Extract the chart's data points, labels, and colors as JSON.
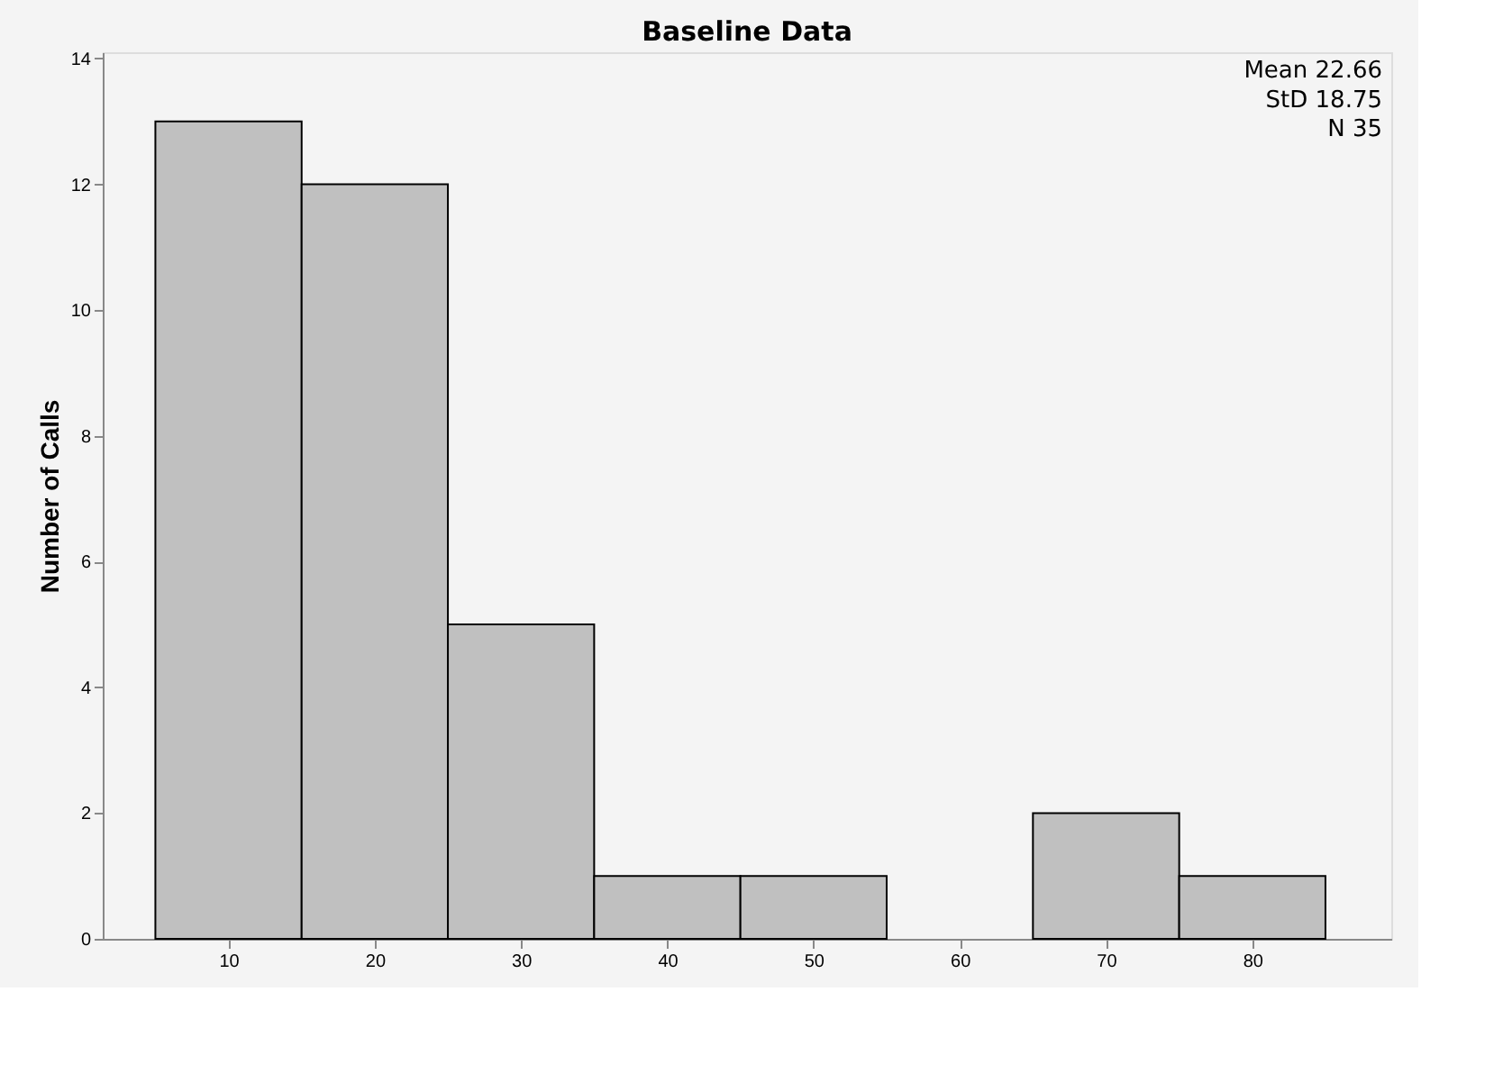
{
  "chart_data": {
    "type": "histogram",
    "title": "Baseline Data",
    "ylabel": "Number of Calls",
    "bins": [
      5,
      15,
      25,
      35,
      45,
      55,
      65,
      75,
      85
    ],
    "values": [
      13,
      12,
      5,
      1,
      1,
      0,
      2,
      1
    ],
    "color": "#c0c0c0",
    "xlim": [
      1.4,
      89.5
    ],
    "xticks": [
      10,
      20,
      30,
      40,
      50,
      60,
      70,
      80
    ],
    "ylim": [
      0,
      14.1
    ],
    "yticks": [
      0,
      2,
      4,
      6,
      8,
      10,
      12,
      14
    ],
    "grid": false,
    "annotations": [
      "Mean 22.66",
      "StD 18.75",
      "N 35"
    ]
  }
}
